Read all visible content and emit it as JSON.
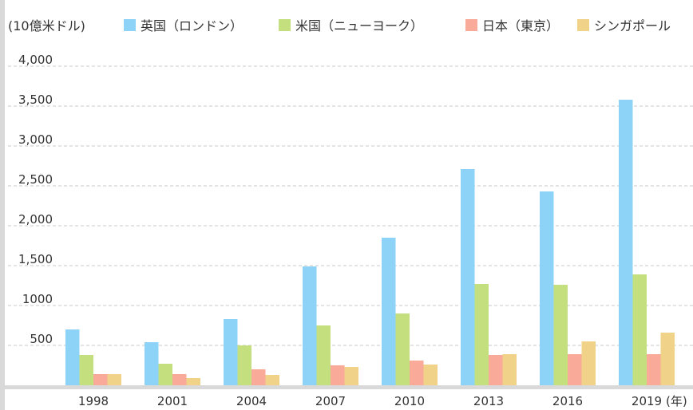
{
  "chart_data": {
    "type": "bar",
    "unit_label": "(10億米ドル)",
    "x_unit_label": "(年)",
    "categories": [
      "1998",
      "2001",
      "2004",
      "2007",
      "2010",
      "2013",
      "2016",
      "2019"
    ],
    "series": [
      {
        "name": "英国（ロンドン）",
        "color": "#8dd3f8",
        "values": [
          700,
          540,
          830,
          1490,
          1850,
          2710,
          2430,
          3580
        ]
      },
      {
        "name": "米国（ニューヨーク）",
        "color": "#c4e07e",
        "values": [
          380,
          270,
          500,
          750,
          900,
          1270,
          1260,
          1390
        ]
      },
      {
        "name": "日本（東京）",
        "color": "#f9aa98",
        "values": [
          140,
          140,
          200,
          250,
          310,
          380,
          390,
          390
        ]
      },
      {
        "name": "シンガポール",
        "color": "#f0d389",
        "values": [
          140,
          90,
          130,
          230,
          260,
          390,
          550,
          660
        ]
      }
    ],
    "yticks": [
      {
        "value": 500,
        "label": "500"
      },
      {
        "value": 1000,
        "label": "1000"
      },
      {
        "value": 1500,
        "label": "1,500"
      },
      {
        "value": 2000,
        "label": "2,000"
      },
      {
        "value": 2500,
        "label": "2,500"
      },
      {
        "value": 3000,
        "label": "3,000"
      },
      {
        "value": 3500,
        "label": "3,500"
      },
      {
        "value": 4000,
        "label": "4,000"
      }
    ],
    "ylim": [
      0,
      4000
    ],
    "grid": true,
    "grid_style": "dashed",
    "legend_position": "top"
  }
}
